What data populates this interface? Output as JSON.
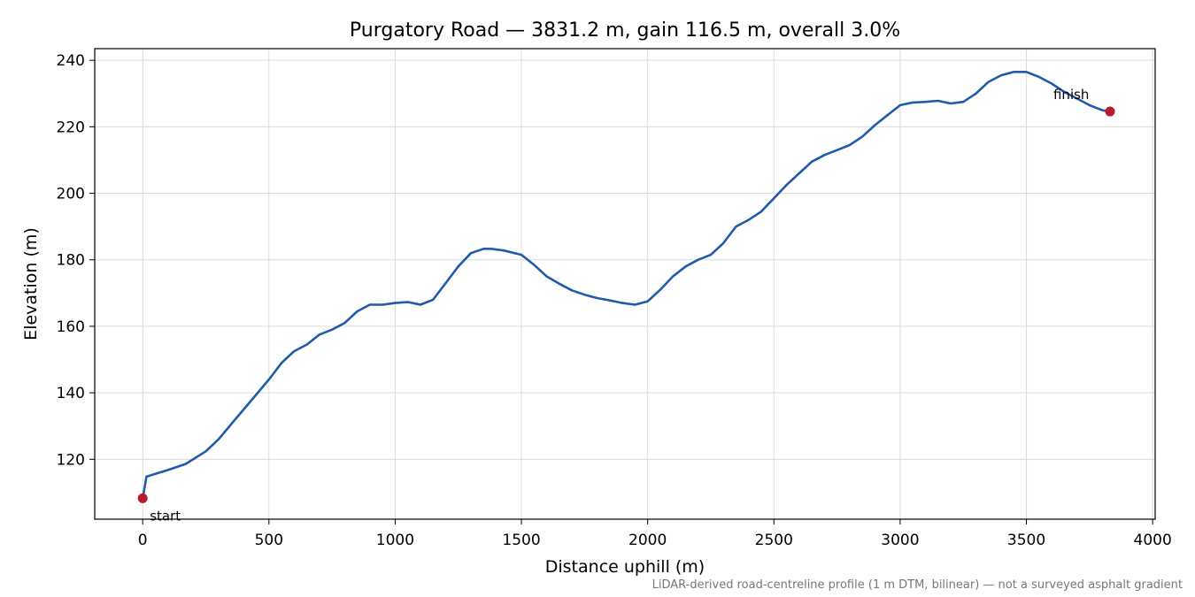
{
  "chart_data": {
    "type": "line",
    "title": "Purgatory Road — 3831.2 m, gain 116.5 m, overall 3.0%",
    "xlabel": "Distance uphill (m)",
    "ylabel": "Elevation (m)",
    "xlim": [
      -190,
      4010
    ],
    "ylim": [
      102,
      243.5
    ],
    "xticks": [
      0,
      500,
      1000,
      1500,
      2000,
      2500,
      3000,
      3500,
      4000
    ],
    "yticks": [
      120,
      140,
      160,
      180,
      200,
      220,
      240
    ],
    "grid": true,
    "line_color": "#1f5aab",
    "marker_color": "#b81c2b",
    "series": [
      {
        "x": [
          0,
          15,
          100,
          170,
          250,
          300,
          350,
          400,
          450,
          500,
          550,
          600,
          650,
          700,
          750,
          800,
          850,
          900,
          950,
          1000,
          1050,
          1100,
          1150,
          1200,
          1250,
          1300,
          1350,
          1380,
          1430,
          1500,
          1550,
          1600,
          1650,
          1700,
          1750,
          1800,
          1850,
          1900,
          1950,
          2000,
          2050,
          2100,
          2150,
          2200,
          2250,
          2300,
          2350,
          2400,
          2450,
          2500,
          2550,
          2600,
          2650,
          2700,
          2750,
          2800,
          2850,
          2900,
          2950,
          3000,
          3050,
          3100,
          3150,
          3200,
          3250,
          3300,
          3350,
          3400,
          3450,
          3500,
          3550,
          3600,
          3650,
          3700,
          3750,
          3800,
          3831.2
        ],
        "y": [
          108.3,
          114.8,
          116.8,
          118.6,
          122.4,
          126.0,
          130.5,
          135.0,
          139.5,
          144.0,
          149.0,
          152.5,
          154.5,
          157.5,
          159.0,
          161.0,
          164.5,
          166.5,
          166.5,
          167.0,
          167.3,
          166.5,
          168.0,
          173.0,
          178.0,
          182.0,
          183.3,
          183.3,
          182.8,
          181.5,
          178.5,
          175.0,
          172.8,
          170.8,
          169.5,
          168.5,
          167.8,
          167.0,
          166.5,
          167.5,
          171.0,
          175.0,
          178.0,
          180.0,
          181.5,
          185.0,
          190.0,
          192.0,
          194.5,
          198.5,
          202.5,
          206.0,
          209.5,
          211.5,
          213.0,
          214.5,
          217.0,
          220.5,
          223.5,
          226.5,
          227.3,
          227.5,
          227.8,
          227.0,
          227.5,
          230.0,
          233.5,
          235.5,
          236.5,
          236.5,
          235.0,
          233.0,
          230.5,
          228.5,
          226.5,
          225.0,
          224.6
        ]
      }
    ],
    "points": [
      {
        "label": "start",
        "x": 0,
        "y": 108.3
      },
      {
        "label": "finish",
        "x": 3831.2,
        "y": 224.6
      }
    ]
  },
  "footnote": "LiDAR-derived road-centreline profile (1 m DTM, bilinear) — not a surveyed asphalt gradient"
}
